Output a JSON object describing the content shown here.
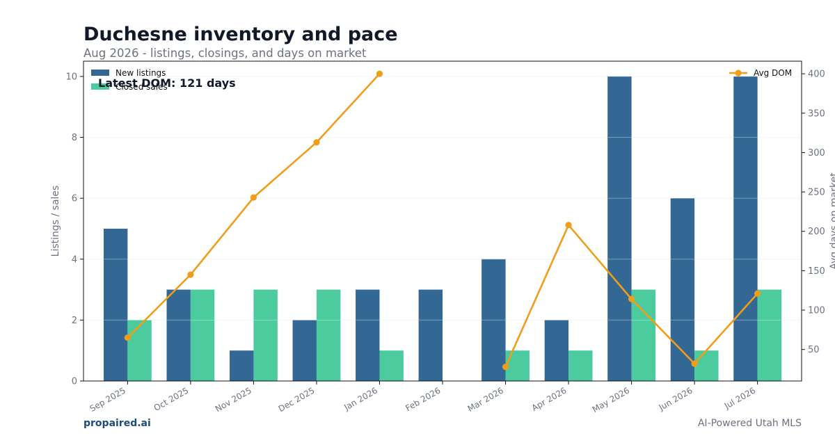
{
  "header": {
    "title": "Duchesne inventory and pace",
    "subtitle": "Aug 2026 - listings, closings, and days on market"
  },
  "footer": {
    "brand": "propaired.ai",
    "tagline": "AI-Powered Utah MLS"
  },
  "annotation": "Latest DOM: 121 days",
  "colors": {
    "new_listings": "#336794",
    "closed_sales": "#4bcb9e",
    "avg_dom": "#f09d1a",
    "axis_text": "#6b7280"
  },
  "chart_data": {
    "type": "bar",
    "categories": [
      "Sep 2025",
      "Oct 2025",
      "Nov 2025",
      "Dec 2025",
      "Jan 2026",
      "Feb 2026",
      "Mar 2026",
      "Apr 2026",
      "May 2026",
      "Jun 2026",
      "Jul 2026"
    ],
    "series": [
      {
        "name": "New listings",
        "type": "bar",
        "axis": "left",
        "values": [
          5,
          3,
          1,
          2,
          3,
          3,
          4,
          2,
          10,
          6,
          10
        ]
      },
      {
        "name": "Closed sales",
        "type": "bar",
        "axis": "left",
        "values": [
          2,
          3,
          3,
          3,
          1,
          0,
          1,
          1,
          3,
          1,
          3
        ]
      },
      {
        "name": "Avg DOM",
        "type": "line",
        "axis": "right",
        "values": [
          65,
          145,
          243,
          313,
          400,
          null,
          28,
          208,
          114,
          32,
          121
        ]
      }
    ],
    "ylabel": "Listings / sales",
    "y2label": "Avg days on market",
    "ylim": [
      0,
      10.5
    ],
    "y2lim": [
      10,
      416
    ],
    "yticks": [
      0,
      2,
      4,
      6,
      8,
      10
    ],
    "y2ticks": [
      50,
      100,
      150,
      200,
      250,
      300,
      350,
      400
    ],
    "legend_left": "top-left",
    "legend_right": "top-right",
    "grid": true
  }
}
